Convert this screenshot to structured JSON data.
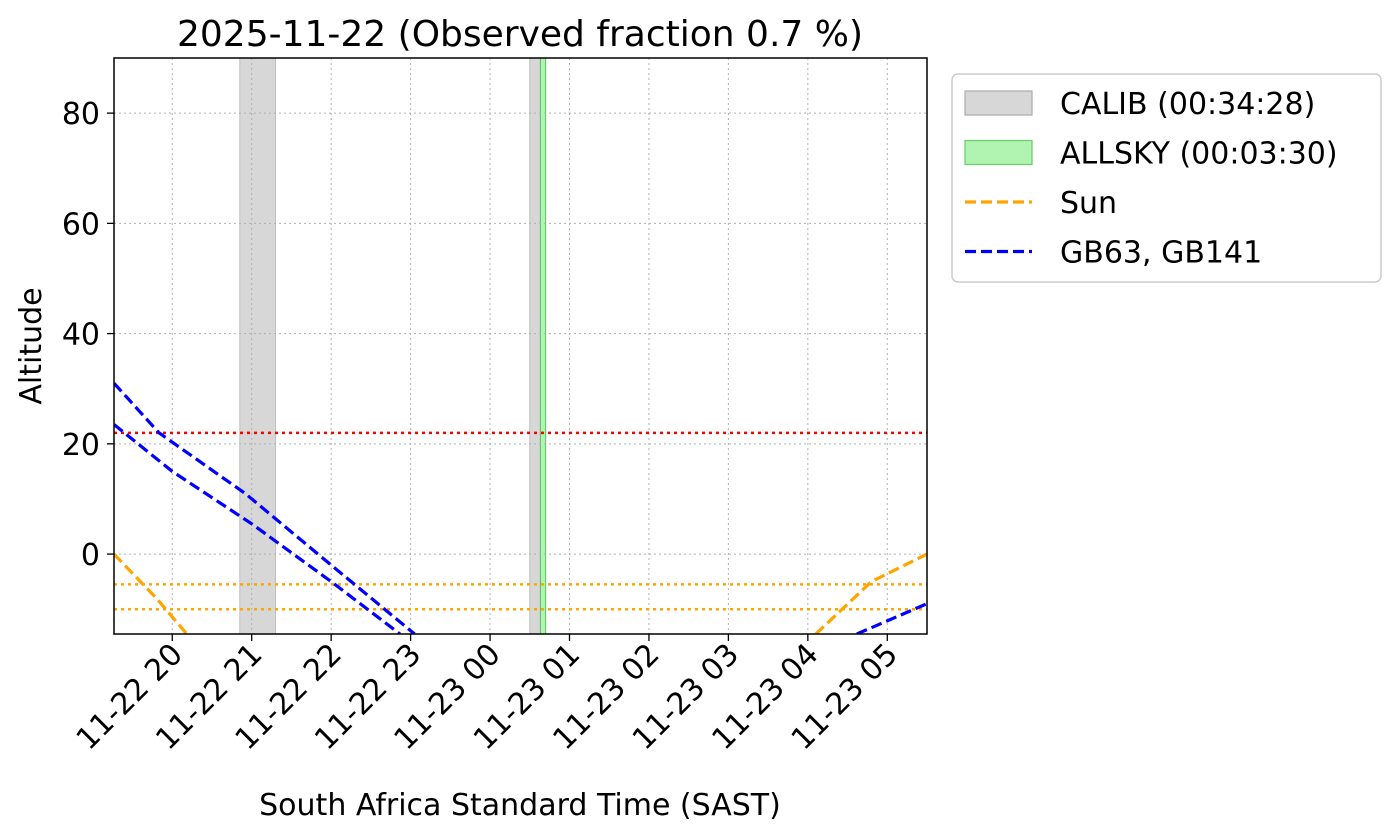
{
  "chart_data": {
    "type": "line",
    "title": "2025-11-22 (Observed fraction 0.7 %)",
    "xlabel": "South Africa Standard Time (SAST)",
    "ylabel": "Altitude",
    "xlim": [
      "2025-11-22 19:16",
      "2025-11-23 05:30"
    ],
    "ylim": [
      -14.5,
      90
    ],
    "grid": true,
    "legend_position": "outside-right-top",
    "xticks": [
      "11-22 20",
      "11-22 21",
      "11-22 22",
      "11-22 23",
      "11-23 00",
      "11-23 01",
      "11-23 02",
      "11-23 03",
      "11-23 04",
      "11-23 05"
    ],
    "xtick_times": [
      "2025-11-22 20:00",
      "2025-11-22 21:00",
      "2025-11-22 22:00",
      "2025-11-22 23:00",
      "2025-11-23 00:00",
      "2025-11-23 01:00",
      "2025-11-23 02:00",
      "2025-11-23 03:00",
      "2025-11-23 04:00",
      "2025-11-23 05:00"
    ],
    "yticks": [
      0,
      20,
      40,
      60,
      80
    ],
    "spans": [
      {
        "name": "CALIB (00:34:28)",
        "color": "#d3d3d3",
        "intervals": [
          [
            "2025-11-22 20:51",
            "2025-11-22 21:18"
          ],
          [
            "2025-11-23 00:30",
            "2025-11-23 00:38"
          ]
        ]
      },
      {
        "name": "ALLSKY (00:03:30)",
        "color": "#90ee90",
        "intervals": [
          [
            "2025-11-23 00:38",
            "2025-11-23 00:42"
          ]
        ]
      }
    ],
    "series": [
      {
        "name": "Sun",
        "color": "#ffa500",
        "style": "dashed",
        "segments": [
          {
            "x": [
              "2025-11-22 19:16",
              "2025-11-22 19:48",
              "2025-11-22 20:11"
            ],
            "y": [
              0,
              -8,
              -14.5
            ]
          },
          {
            "x": [
              "2025-11-23 04:06",
              "2025-11-23 04:48",
              "2025-11-23 05:30"
            ],
            "y": [
              -14.5,
              -5,
              0
            ]
          }
        ]
      },
      {
        "name": "GB63, GB141",
        "color": "#0000ff",
        "style": "dashed",
        "segments": [
          {
            "x": [
              "2025-11-22 19:16",
              "2025-11-22 19:50",
              "2025-11-22 20:55",
              "2025-11-22 22:00",
              "2025-11-22 23:03"
            ],
            "y": [
              31,
              22,
              11,
              -2,
              -14.5
            ]
          },
          {
            "x": [
              "2025-11-22 19:16",
              "2025-11-22 20:00",
              "2025-11-22 21:00",
              "2025-11-22 22:00",
              "2025-11-22 22:52"
            ],
            "y": [
              23.5,
              15,
              5.5,
              -5,
              -14.5
            ]
          },
          {
            "x": [
              "2025-11-23 04:37",
              "2025-11-23 05:30"
            ],
            "y": [
              -14.5,
              -9
            ]
          }
        ]
      }
    ],
    "hlines": [
      {
        "y": 22,
        "color": "#ff0000",
        "style": "dotted"
      },
      {
        "y": -5.5,
        "color": "#ffa500",
        "style": "dotted"
      },
      {
        "y": -10,
        "color": "#ffa500",
        "style": "dotted"
      }
    ],
    "legend": [
      {
        "label": "CALIB (00:34:28)",
        "kind": "patch",
        "color": "#d3d3d3",
        "edge": "#b0b0b0"
      },
      {
        "label": "ALLSKY (00:03:30)",
        "kind": "patch",
        "color": "#90ee90",
        "edge": "#6fcf6f"
      },
      {
        "label": "Sun",
        "kind": "line",
        "color": "#ffa500"
      },
      {
        "label": "GB63, GB141",
        "kind": "line",
        "color": "#0000ff"
      }
    ]
  }
}
